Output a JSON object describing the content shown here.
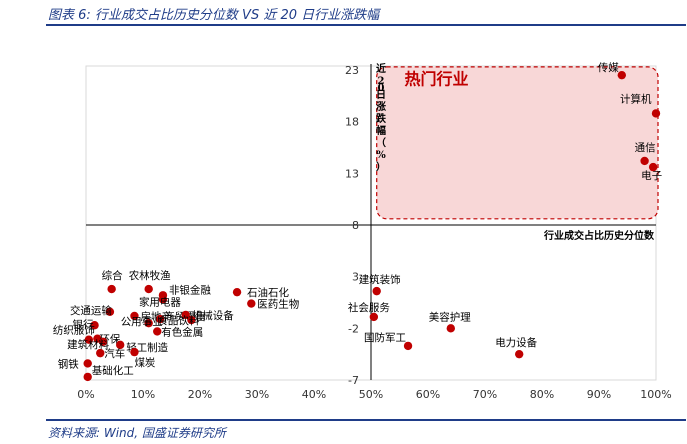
{
  "figure": {
    "caption": "图表 6:  行业成交占比历史分位数 VS 近 20 日行业涨跌幅",
    "source": "资料来源: Wind, 国盛证券研究所"
  },
  "chart_data": {
    "type": "scatter",
    "xlabel": "行业成交占比历史分位数",
    "ylabel": "近20日涨跌幅（%）",
    "xlim": [
      0,
      100
    ],
    "ylim": [
      -7,
      23
    ],
    "x_ticks": [
      "0%",
      "10%",
      "20%",
      "30%",
      "40%",
      "50%",
      "60%",
      "70%",
      "80%",
      "90%",
      "100%"
    ],
    "y_ticks": [
      "-7",
      "-2",
      "3",
      "8",
      "13",
      "18",
      "23"
    ],
    "annotation": "热门行业",
    "colors": {
      "point": "#c00000",
      "hot_fill": "#f8d7d7",
      "hot_border": "#c00000",
      "annotation": "#c00000"
    },
    "points": [
      {
        "name": "传媒",
        "x": 94,
        "y": 22.5
      },
      {
        "name": "计算机",
        "x": 100,
        "y": 18.8
      },
      {
        "name": "通信",
        "x": 98,
        "y": 14.2
      },
      {
        "name": "电子",
        "x": 99.5,
        "y": 13.6
      },
      {
        "name": "综合",
        "x": 4.5,
        "y": 1.8
      },
      {
        "name": "农林牧渔",
        "x": 11,
        "y": 1.8
      },
      {
        "name": "非银金融",
        "x": 13.5,
        "y": 1.2
      },
      {
        "name": "家用电器",
        "x": 13.5,
        "y": 0.8
      },
      {
        "name": "交通运输",
        "x": 4.2,
        "y": -0.4
      },
      {
        "name": "房地产",
        "x": 8.5,
        "y": -0.8
      },
      {
        "name": "商贸零售",
        "x": 13,
        "y": -1.1
      },
      {
        "name": "机械设备",
        "x": 17.5,
        "y": -0.7
      },
      {
        "name": "石油石化",
        "x": 26.5,
        "y": 1.5
      },
      {
        "name": "医药生物",
        "x": 29,
        "y": 0.4
      },
      {
        "name": "银行",
        "x": 1.5,
        "y": -1.7
      },
      {
        "name": "公用事业",
        "x": 11,
        "y": -1.5
      },
      {
        "name": "食品饮料",
        "x": 18.5,
        "y": -1.2
      },
      {
        "name": "有色金属",
        "x": 12.5,
        "y": -2.3
      },
      {
        "name": "纺织服饰",
        "x": 0.5,
        "y": -3.1
      },
      {
        "name": "环保",
        "x": 2,
        "y": -3
      },
      {
        "name": "建筑材料",
        "x": 3,
        "y": -3.3
      },
      {
        "name": "轻工制造",
        "x": 6,
        "y": -3.6
      },
      {
        "name": "汽车",
        "x": 2.5,
        "y": -4.4
      },
      {
        "name": "煤炭",
        "x": 8.5,
        "y": -4.3
      },
      {
        "name": "钢铁",
        "x": 0.3,
        "y": -5.4
      },
      {
        "name": "基础化工",
        "x": 0.3,
        "y": -6.7
      },
      {
        "name": "建筑装饰",
        "x": 51,
        "y": 1.6
      },
      {
        "name": "社会服务",
        "x": 50.5,
        "y": -0.9
      },
      {
        "name": "美容护理",
        "x": 64,
        "y": -2
      },
      {
        "name": "国防军工",
        "x": 56.5,
        "y": -3.7
      },
      {
        "name": "电力设备",
        "x": 76,
        "y": -4.5
      }
    ]
  }
}
